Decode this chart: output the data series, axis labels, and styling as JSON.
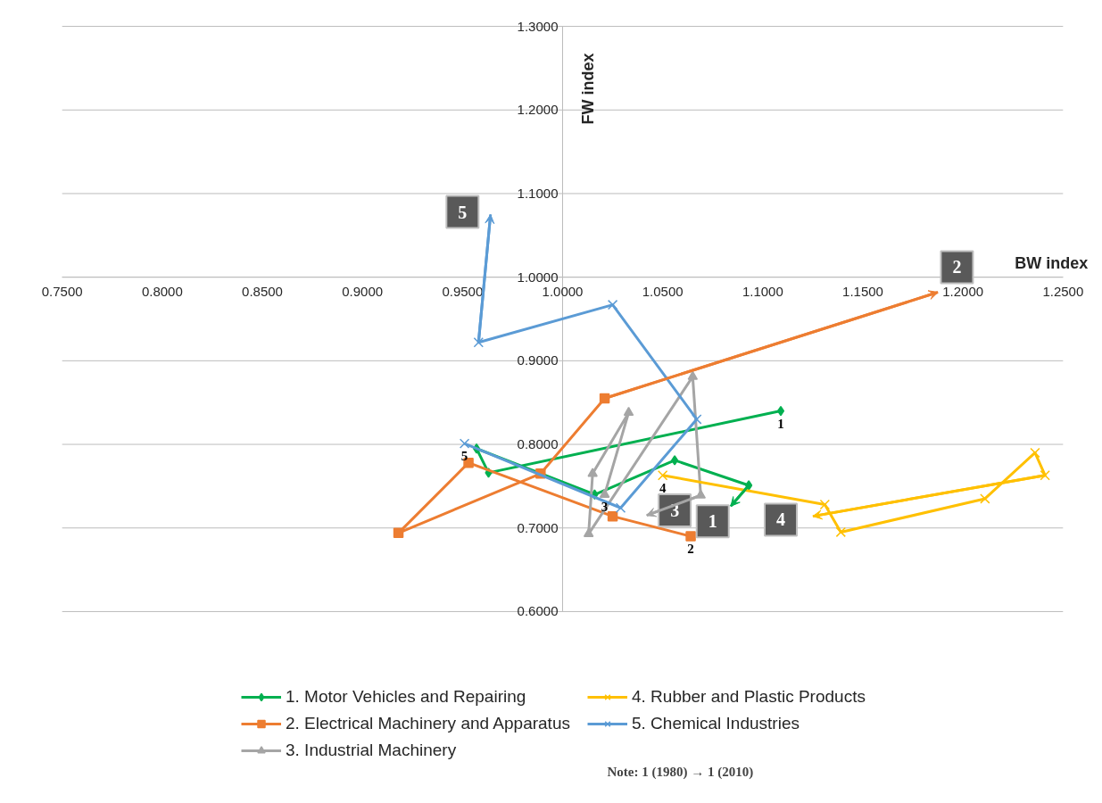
{
  "chart_data": {
    "type": "line",
    "xlabel": "BW index",
    "ylabel": "FW index",
    "xlim": [
      0.75,
      1.25
    ],
    "xticks": [
      {
        "value": 0.75,
        "label": "0.7500"
      },
      {
        "value": 0.8,
        "label": "0.8000"
      },
      {
        "value": 0.85,
        "label": "0.8500"
      },
      {
        "value": 0.9,
        "label": "0.9000"
      },
      {
        "value": 0.95,
        "label": "0.9500"
      },
      {
        "value": 1.0,
        "label": "1.0000"
      },
      {
        "value": 1.05,
        "label": "1.0500"
      },
      {
        "value": 1.1,
        "label": "1.1000"
      },
      {
        "value": 1.15,
        "label": "1.1500"
      },
      {
        "value": 1.2,
        "label": "1.2000"
      },
      {
        "value": 1.25,
        "label": "1.2500"
      }
    ],
    "ylim": [
      0.6,
      1.3
    ],
    "yticks": [
      {
        "value": 0.6,
        "label": "0.6000"
      },
      {
        "value": 0.7,
        "label": "0.7000"
      },
      {
        "value": 0.8,
        "label": "0.8000"
      },
      {
        "value": 0.9,
        "label": "0.9000"
      },
      {
        "value": 1.0,
        "label": "1.0000"
      },
      {
        "value": 1.1,
        "label": "1.1000"
      },
      {
        "value": 1.2,
        "label": "1.2000"
      },
      {
        "value": 1.3,
        "label": "1.3000"
      }
    ],
    "grid": "y",
    "legend": "bottom",
    "series": [
      {
        "name": "1. Motor Vehicles and Repairing",
        "color": "#00b050",
        "marker": "diamond",
        "x": [
          1.109,
          0.963,
          0.957,
          1.016,
          1.056,
          1.093,
          1.084
        ],
        "values": [
          0.84,
          0.766,
          0.795,
          0.74,
          0.781,
          0.751,
          0.726
        ]
      },
      {
        "name": "2. Electrical Machinery and Apparatus",
        "color": "#ed7d31",
        "marker": "square",
        "x": [
          1.064,
          1.025,
          0.953,
          0.918,
          0.989,
          1.021,
          1.1875
        ],
        "values": [
          0.69,
          0.714,
          0.778,
          0.694,
          0.765,
          0.855,
          0.982
        ]
      },
      {
        "name": "3. Industrial Machinery",
        "color": "#a5a5a5",
        "marker": "triangle",
        "x": [
          1.021,
          1.033,
          1.015,
          1.013,
          1.065,
          1.069,
          1.042
        ],
        "values": [
          0.74,
          0.838,
          0.765,
          0.693,
          0.881,
          0.739,
          0.715
        ]
      },
      {
        "name": "4. Rubber and Plastic Products",
        "color": "#ffc000",
        "marker": "cross",
        "x": [
          1.05,
          1.131,
          1.139,
          1.211,
          1.236,
          1.241,
          1.125
        ],
        "values": [
          0.763,
          0.728,
          0.695,
          0.735,
          0.79,
          0.763,
          0.714
        ]
      },
      {
        "name": "5. Chemical Industries",
        "color": "#5b9bd5",
        "marker": "cross",
        "x": [
          0.951,
          1.029,
          1.067,
          1.025,
          0.958,
          0.964
        ],
        "values": [
          0.801,
          0.724,
          0.83,
          0.967,
          0.922,
          1.075
        ]
      }
    ],
    "annotations": [
      {
        "text": "1",
        "x": 1.109,
        "y": 0.84
      },
      {
        "text": "2",
        "x": 1.064,
        "y": 0.69
      },
      {
        "text": "3",
        "x": 1.021,
        "y": 0.74
      },
      {
        "text": "4",
        "x": 1.05,
        "y": 0.763
      },
      {
        "text": "5",
        "x": 0.951,
        "y": 0.801
      },
      {
        "text": "1",
        "x": 1.075,
        "y": 0.708
      },
      {
        "text": "2",
        "x": 1.197,
        "y": 1.012
      },
      {
        "text": "3",
        "x": 1.056,
        "y": 0.721
      },
      {
        "text": "4",
        "x": 1.109,
        "y": 0.71
      },
      {
        "text": "5",
        "x": 0.95,
        "y": 1.078
      },
      "Note: 1 (1980) → 1 (2010)"
    ]
  }
}
